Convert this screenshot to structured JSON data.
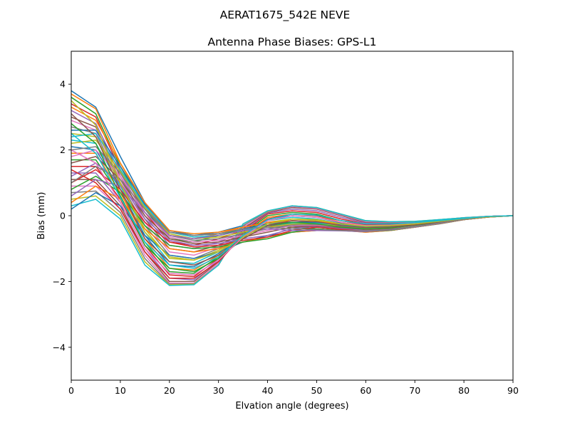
{
  "figure": {
    "suptitle": "AERAT1675_542E  NEVE"
  },
  "chart_data": {
    "type": "line",
    "title": "Antenna Phase Biases: GPS-L1",
    "xlabel": "Elvation angle (degrees)",
    "ylabel": "Bias (mm)",
    "xlim": [
      0,
      90
    ],
    "ylim": [
      -5,
      5
    ],
    "xticks": [
      0,
      10,
      20,
      30,
      40,
      50,
      60,
      70,
      80,
      90
    ],
    "yticks": [
      -4,
      -2,
      0,
      2,
      4
    ],
    "xtick_labels": [
      "0",
      "10",
      "20",
      "30",
      "40",
      "50",
      "60",
      "70",
      "80",
      "90"
    ],
    "ytick_labels": [
      "−4",
      "−2",
      "0",
      "2",
      "4"
    ],
    "grid": false,
    "legend": "none",
    "x": [
      0,
      5,
      10,
      15,
      20,
      25,
      30,
      35,
      40,
      45,
      50,
      55,
      60,
      65,
      70,
      75,
      80,
      85,
      90
    ],
    "colors": [
      "#1f77b4",
      "#ff7f0e",
      "#2ca02c",
      "#d62728",
      "#9467bd",
      "#8c564b",
      "#e377c2",
      "#7f7f7f",
      "#bcbd22",
      "#17becf"
    ],
    "series": [
      {
        "values": [
          3.8,
          3.3,
          1.8,
          0.4,
          -0.5,
          -0.6,
          -0.5,
          -0.3,
          -0.2,
          -0.3,
          -0.4,
          -0.45,
          -0.45,
          -0.45,
          -0.35,
          -0.25,
          -0.12,
          -0.04,
          0
        ]
      },
      {
        "values": [
          3.7,
          3.25,
          1.6,
          0.3,
          -0.6,
          -0.7,
          -0.55,
          -0.35,
          -0.25,
          -0.35,
          -0.4,
          -0.45,
          -0.45,
          -0.42,
          -0.34,
          -0.24,
          -0.12,
          -0.04,
          0
        ]
      },
      {
        "values": [
          3.6,
          3.1,
          1.5,
          0.2,
          -0.7,
          -0.8,
          -0.6,
          -0.4,
          -0.3,
          -0.35,
          -0.4,
          -0.45,
          -0.47,
          -0.43,
          -0.34,
          -0.24,
          -0.12,
          -0.04,
          0
        ]
      },
      {
        "values": [
          3.4,
          3.0,
          1.4,
          0.1,
          -0.8,
          -0.9,
          -0.7,
          -0.45,
          -0.3,
          -0.3,
          -0.35,
          -0.42,
          -0.45,
          -0.42,
          -0.33,
          -0.23,
          -0.11,
          -0.03,
          0
        ]
      },
      {
        "values": [
          3.2,
          2.8,
          1.3,
          0.0,
          -0.9,
          -1.0,
          -0.8,
          -0.5,
          -0.35,
          -0.3,
          -0.33,
          -0.4,
          -0.44,
          -0.4,
          -0.32,
          -0.22,
          -0.11,
          -0.03,
          0
        ]
      },
      {
        "values": [
          3.0,
          2.7,
          1.2,
          -0.1,
          -1.0,
          -1.1,
          -0.9,
          -0.55,
          -0.3,
          -0.25,
          -0.3,
          -0.38,
          -0.42,
          -0.38,
          -0.3,
          -0.21,
          -0.1,
          -0.03,
          0
        ]
      },
      {
        "values": [
          2.9,
          2.6,
          1.1,
          -0.2,
          -1.1,
          -1.2,
          -0.95,
          -0.6,
          -0.3,
          -0.2,
          -0.25,
          -0.35,
          -0.4,
          -0.37,
          -0.29,
          -0.2,
          -0.1,
          -0.03,
          0
        ]
      },
      {
        "values": [
          2.7,
          2.5,
          1.0,
          -0.3,
          -1.2,
          -1.3,
          -1.0,
          -0.6,
          -0.25,
          -0.15,
          -0.2,
          -0.32,
          -0.38,
          -0.35,
          -0.28,
          -0.19,
          -0.1,
          -0.03,
          0
        ]
      },
      {
        "values": [
          2.5,
          2.4,
          0.95,
          -0.4,
          -1.3,
          -1.35,
          -1.05,
          -0.6,
          -0.2,
          -0.1,
          -0.15,
          -0.28,
          -0.36,
          -0.33,
          -0.27,
          -0.18,
          -0.09,
          -0.03,
          0
        ]
      },
      {
        "values": [
          2.3,
          2.2,
          0.9,
          -0.5,
          -1.4,
          -1.45,
          -1.1,
          -0.6,
          -0.15,
          -0.05,
          -0.1,
          -0.25,
          -0.34,
          -0.32,
          -0.26,
          -0.18,
          -0.09,
          -0.03,
          0
        ]
      },
      {
        "values": [
          2.1,
          2.0,
          0.8,
          -0.6,
          -1.5,
          -1.55,
          -1.15,
          -0.6,
          -0.1,
          0.0,
          -0.05,
          -0.22,
          -0.32,
          -0.3,
          -0.25,
          -0.17,
          -0.09,
          -0.02,
          0
        ]
      },
      {
        "values": [
          1.9,
          1.9,
          0.7,
          -0.7,
          -1.6,
          -1.65,
          -1.2,
          -0.6,
          -0.05,
          0.05,
          0.0,
          -0.2,
          -0.3,
          -0.28,
          -0.24,
          -0.16,
          -0.08,
          -0.02,
          0
        ]
      },
      {
        "values": [
          1.7,
          1.7,
          0.6,
          -0.8,
          -1.7,
          -1.75,
          -1.25,
          -0.55,
          0.0,
          0.1,
          0.05,
          -0.15,
          -0.28,
          -0.27,
          -0.23,
          -0.16,
          -0.08,
          -0.02,
          0
        ]
      },
      {
        "values": [
          1.5,
          1.5,
          0.5,
          -0.9,
          -1.8,
          -1.85,
          -1.3,
          -0.5,
          0.05,
          0.15,
          0.1,
          -0.1,
          -0.25,
          -0.25,
          -0.22,
          -0.15,
          -0.08,
          -0.02,
          0
        ]
      },
      {
        "values": [
          1.3,
          1.3,
          0.4,
          -1.0,
          -1.9,
          -1.95,
          -1.35,
          -0.45,
          0.08,
          0.2,
          0.15,
          -0.05,
          -0.22,
          -0.24,
          -0.21,
          -0.14,
          -0.07,
          -0.02,
          0
        ]
      },
      {
        "values": [
          1.1,
          1.1,
          0.3,
          -1.1,
          -2.0,
          -2.0,
          -1.4,
          -0.4,
          0.1,
          0.25,
          0.2,
          0.0,
          -0.2,
          -0.22,
          -0.2,
          -0.13,
          -0.07,
          -0.02,
          0
        ]
      },
      {
        "values": [
          0.9,
          0.9,
          0.2,
          -1.2,
          -2.05,
          -2.05,
          -1.45,
          -0.35,
          0.12,
          0.28,
          0.22,
          0.02,
          -0.18,
          -0.2,
          -0.19,
          -0.13,
          -0.07,
          -0.02,
          0
        ]
      },
      {
        "values": [
          0.7,
          0.75,
          0.1,
          -1.3,
          -2.08,
          -2.07,
          -1.5,
          -0.3,
          0.13,
          0.3,
          0.24,
          0.04,
          -0.16,
          -0.19,
          -0.18,
          -0.12,
          -0.06,
          -0.02,
          0
        ]
      },
      {
        "values": [
          0.5,
          0.6,
          0.0,
          -1.4,
          -2.1,
          -2.08,
          -1.5,
          -0.25,
          0.14,
          0.3,
          0.25,
          0.05,
          -0.15,
          -0.18,
          -0.17,
          -0.12,
          -0.06,
          -0.02,
          0
        ]
      },
      {
        "values": [
          0.3,
          0.5,
          -0.1,
          -1.5,
          -2.12,
          -2.1,
          -1.5,
          -0.25,
          0.15,
          0.3,
          0.25,
          0.05,
          -0.15,
          -0.18,
          -0.17,
          -0.12,
          -0.06,
          -0.02,
          0
        ]
      },
      {
        "values": [
          0.2,
          0.7,
          0.3,
          -0.6,
          -1.2,
          -1.3,
          -1.1,
          -0.8,
          -0.6,
          -0.5,
          -0.45,
          -0.45,
          -0.5,
          -0.45,
          -0.35,
          -0.24,
          -0.12,
          -0.04,
          0
        ]
      },
      {
        "values": [
          0.4,
          0.9,
          0.5,
          -0.4,
          -1.0,
          -1.1,
          -1.0,
          -0.8,
          -0.65,
          -0.5,
          -0.45,
          -0.45,
          -0.5,
          -0.45,
          -0.35,
          -0.24,
          -0.12,
          -0.04,
          0
        ]
      },
      {
        "values": [
          0.8,
          1.2,
          0.7,
          -0.3,
          -0.9,
          -1.0,
          -0.95,
          -0.8,
          -0.7,
          -0.5,
          -0.4,
          -0.45,
          -0.48,
          -0.44,
          -0.34,
          -0.23,
          -0.11,
          -0.03,
          0
        ]
      },
      {
        "values": [
          1.0,
          1.4,
          0.8,
          -0.2,
          -0.8,
          -0.95,
          -0.9,
          -0.75,
          -0.65,
          -0.45,
          -0.35,
          -0.42,
          -0.46,
          -0.42,
          -0.33,
          -0.22,
          -0.11,
          -0.03,
          0
        ]
      },
      {
        "values": [
          1.2,
          1.6,
          1.0,
          -0.1,
          -0.75,
          -0.9,
          -0.85,
          -0.7,
          -0.6,
          -0.4,
          -0.3,
          -0.38,
          -0.44,
          -0.4,
          -0.32,
          -0.22,
          -0.11,
          -0.03,
          0
        ]
      },
      {
        "values": [
          1.6,
          1.8,
          1.1,
          0.0,
          -0.7,
          -0.85,
          -0.8,
          -0.65,
          -0.5,
          -0.35,
          -0.3,
          -0.36,
          -0.42,
          -0.39,
          -0.31,
          -0.21,
          -0.1,
          -0.03,
          0
        ]
      },
      {
        "values": [
          1.8,
          2.0,
          1.2,
          0.1,
          -0.65,
          -0.8,
          -0.75,
          -0.6,
          -0.45,
          -0.3,
          -0.28,
          -0.34,
          -0.4,
          -0.37,
          -0.3,
          -0.2,
          -0.1,
          -0.03,
          0
        ]
      },
      {
        "values": [
          2.0,
          2.1,
          1.3,
          0.2,
          -0.6,
          -0.75,
          -0.7,
          -0.55,
          -0.4,
          -0.28,
          -0.26,
          -0.32,
          -0.38,
          -0.36,
          -0.29,
          -0.2,
          -0.1,
          -0.03,
          0
        ]
      },
      {
        "values": [
          2.2,
          2.3,
          1.35,
          0.25,
          -0.55,
          -0.7,
          -0.65,
          -0.5,
          -0.35,
          -0.25,
          -0.24,
          -0.3,
          -0.36,
          -0.34,
          -0.28,
          -0.19,
          -0.1,
          -0.03,
          0
        ]
      },
      {
        "values": [
          2.4,
          2.5,
          1.4,
          0.3,
          -0.5,
          -0.65,
          -0.6,
          -0.45,
          -0.3,
          -0.22,
          -0.22,
          -0.28,
          -0.34,
          -0.32,
          -0.27,
          -0.18,
          -0.09,
          -0.03,
          0
        ]
      },
      {
        "values": [
          2.6,
          2.6,
          1.5,
          0.35,
          -0.45,
          -0.6,
          -0.55,
          -0.4,
          -0.25,
          -0.2,
          -0.2,
          -0.26,
          -0.32,
          -0.31,
          -0.26,
          -0.18,
          -0.09,
          -0.03,
          0
        ]
      },
      {
        "values": [
          3.3,
          2.9,
          1.6,
          0.4,
          -0.45,
          -0.55,
          -0.5,
          -0.35,
          -0.2,
          -0.15,
          -0.18,
          -0.25,
          -0.3,
          -0.3,
          -0.25,
          -0.17,
          -0.09,
          -0.03,
          0
        ]
      },
      {
        "values": [
          2.8,
          2.2,
          0.6,
          -0.9,
          -1.6,
          -1.7,
          -1.3,
          -0.7,
          -0.3,
          -0.2,
          -0.25,
          -0.35,
          -0.4,
          -0.37,
          -0.29,
          -0.2,
          -0.1,
          -0.03,
          0
        ]
      },
      {
        "values": [
          1.4,
          1.0,
          0.2,
          -1.1,
          -1.9,
          -1.9,
          -1.4,
          -0.6,
          -0.1,
          0.05,
          0.0,
          -0.15,
          -0.28,
          -0.27,
          -0.23,
          -0.16,
          -0.08,
          -0.02,
          0
        ]
      },
      {
        "values": [
          0.6,
          1.1,
          0.9,
          0.1,
          -0.6,
          -0.7,
          -0.6,
          -0.45,
          -0.4,
          -0.45,
          -0.45,
          -0.46,
          -0.48,
          -0.43,
          -0.34,
          -0.23,
          -0.11,
          -0.03,
          0
        ]
      },
      {
        "values": [
          3.1,
          2.4,
          0.8,
          -0.7,
          -1.4,
          -1.5,
          -1.2,
          -0.7,
          -0.3,
          -0.15,
          -0.18,
          -0.3,
          -0.36,
          -0.34,
          -0.28,
          -0.19,
          -0.1,
          -0.03,
          0
        ]
      },
      {
        "values": [
          2.0,
          1.6,
          0.4,
          -1.0,
          -1.75,
          -1.8,
          -1.35,
          -0.65,
          -0.15,
          0.0,
          -0.05,
          -0.2,
          -0.3,
          -0.29,
          -0.24,
          -0.17,
          -0.08,
          -0.02,
          0
        ]
      },
      {
        "values": [
          1.0,
          1.5,
          1.1,
          0.2,
          -0.5,
          -0.6,
          -0.55,
          -0.4,
          -0.35,
          -0.4,
          -0.42,
          -0.45,
          -0.46,
          -0.42,
          -0.33,
          -0.22,
          -0.11,
          -0.03,
          0
        ]
      },
      {
        "values": [
          3.5,
          2.75,
          1.0,
          -0.5,
          -1.25,
          -1.35,
          -1.1,
          -0.65,
          -0.25,
          -0.1,
          -0.12,
          -0.25,
          -0.32,
          -0.3,
          -0.25,
          -0.17,
          -0.09,
          -0.03,
          0
        ]
      },
      {
        "values": [
          2.5,
          1.9,
          0.55,
          -0.8,
          -1.5,
          -1.6,
          -1.25,
          -0.6,
          -0.12,
          0.05,
          0.02,
          -0.15,
          -0.25,
          -0.25,
          -0.21,
          -0.15,
          -0.08,
          -0.02,
          0
        ]
      }
    ]
  }
}
